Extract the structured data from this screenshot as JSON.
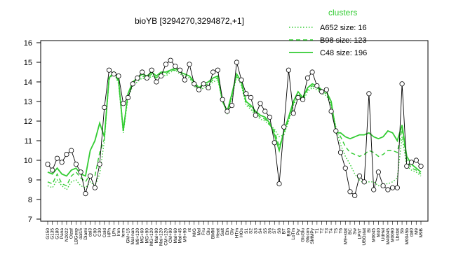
{
  "chart_data": {
    "type": "line",
    "title": "bioYB [3294270,3294872,+1]",
    "ylim": [
      7,
      16
    ],
    "yticks": [
      7,
      8,
      9,
      10,
      11,
      12,
      13,
      14,
      15,
      16
    ],
    "grid": false,
    "legend": {
      "title": "clusters",
      "placement": "top-right",
      "entries": [
        {
          "label": "A652 size: 16",
          "style": "dotted"
        },
        {
          "label": "B98 size: 123",
          "style": "dashed"
        },
        {
          "label": "C48 size: 196",
          "style": "solid"
        }
      ]
    },
    "x_labels": [
      "G150",
      "G135",
      "G180",
      "Pana",
      "N2022",
      "Olzaf",
      "LBGexp",
      "dal15",
      "Diami",
      "dal3",
      "C90",
      "C30",
      "Cold",
      "HPh",
      "LPh",
      "Iron",
      "ferm",
      "GM+15",
      "Mal-nan",
      "M9+120",
      "MG+60",
      "MG+90",
      "MG+120",
      "Mal+90",
      "Mal+120",
      "CM+120",
      "CM+90",
      "Mal+60",
      "Mal+45",
      "M9+90",
      "nt",
      "M/G",
      "Mal",
      "Fru",
      "Glu",
      "BMM",
      "Heat",
      "Salt",
      "Eth",
      "Gly",
      "HTm",
      "HOs",
      "S1",
      "S2",
      "S3",
      "S4",
      "S5",
      "S6",
      "S7",
      "S8",
      "BT",
      "B60",
      "LoTm",
      "Pyr",
      "GlcGlu",
      "Glucon",
      "SMMPy",
      "T1",
      "T2",
      "T3",
      "T4",
      "T5",
      "T6",
      "M9+stat",
      "BC",
      "Sw",
      "LPhT",
      "UBGstat",
      "BI",
      "M0045",
      "M40",
      "UdHel",
      "M40045",
      "M0090",
      "Lbstat",
      "Sb",
      "M0045b",
      "dal0",
      "M9",
      "M9B"
    ],
    "series": [
      {
        "name": "A652 size: 16",
        "style": "dotted",
        "values": [
          8.7,
          8.6,
          9.0,
          8.7,
          8.5,
          8.9,
          9.0,
          8.7,
          8.6,
          8.9,
          8.7,
          9.3,
          11.0,
          14.1,
          14.5,
          13.9,
          11.4,
          13.2,
          13.8,
          14.0,
          14.2,
          14.1,
          14.3,
          14.2,
          14.4,
          14.3,
          14.5,
          14.6,
          14.4,
          14.3,
          14.2,
          13.8,
          13.5,
          13.7,
          13.8,
          14.0,
          14.1,
          13.0,
          12.4,
          13.2,
          14.3,
          13.8,
          12.8,
          12.6,
          12.3,
          12.1,
          12.0,
          11.8,
          11.6,
          11.2,
          11.3,
          12.0,
          12.8,
          13.3,
          13.0,
          13.5,
          13.7,
          13.6,
          13.4,
          13.3,
          12.8,
          11.7,
          10.8,
          10.2,
          9.8,
          9.3,
          9.0,
          8.8,
          8.9,
          8.9,
          8.7,
          8.8,
          8.8,
          8.9,
          9.1,
          11.2,
          9.7,
          9.5,
          9.4,
          9.2
        ]
      },
      {
        "name": "B98 size: 123",
        "style": "dashed",
        "values": [
          8.9,
          8.8,
          9.3,
          8.8,
          8.7,
          9.2,
          9.4,
          9.1,
          8.9,
          9.3,
          9.2,
          10.4,
          11.1,
          14.2,
          14.5,
          14.0,
          11.6,
          13.3,
          13.9,
          14.1,
          14.3,
          14.2,
          14.4,
          14.2,
          14.4,
          14.4,
          14.6,
          14.6,
          14.5,
          14.4,
          14.3,
          13.9,
          13.6,
          13.8,
          13.9,
          14.1,
          14.2,
          13.1,
          12.4,
          13.3,
          14.4,
          13.9,
          12.9,
          12.7,
          12.4,
          12.2,
          12.1,
          11.8,
          11.5,
          10.7,
          11.4,
          12.1,
          12.9,
          13.4,
          13.1,
          13.6,
          13.8,
          13.7,
          13.5,
          13.4,
          12.9,
          11.6,
          11.2,
          10.7,
          10.4,
          10.3,
          10.2,
          10.3,
          10.5,
          10.4,
          10.2,
          10.3,
          10.5,
          10.5,
          10.4,
          11.6,
          10.0,
          9.6,
          9.5,
          9.3
        ]
      },
      {
        "name": "C48 size: 196",
        "style": "solid",
        "values": [
          9.4,
          9.3,
          9.6,
          9.3,
          9.2,
          9.5,
          9.6,
          9.3,
          9.2,
          10.5,
          11.0,
          11.9,
          11.2,
          14.2,
          14.5,
          14.1,
          11.5,
          13.4,
          14.0,
          14.2,
          14.4,
          14.3,
          14.5,
          14.3,
          14.5,
          14.5,
          14.6,
          14.7,
          14.5,
          14.4,
          14.3,
          14.0,
          13.7,
          13.9,
          14.0,
          14.2,
          14.3,
          13.0,
          12.5,
          13.4,
          14.4,
          14.0,
          13.0,
          12.8,
          12.5,
          12.3,
          12.2,
          11.9,
          11.3,
          10.5,
          11.5,
          12.2,
          13.0,
          13.5,
          13.2,
          13.7,
          13.9,
          13.8,
          13.6,
          13.5,
          13.0,
          11.4,
          11.4,
          11.2,
          11.1,
          11.2,
          11.3,
          11.3,
          11.4,
          11.2,
          11.1,
          11.2,
          11.5,
          11.4,
          11.0,
          11.8,
          10.2,
          9.8,
          9.6,
          9.4
        ]
      },
      {
        "name": "",
        "style": "black",
        "values": [
          9.8,
          9.5,
          10.1,
          9.9,
          10.3,
          10.5,
          9.8,
          9.4,
          8.3,
          9.2,
          8.6,
          9.8,
          12.7,
          14.6,
          14.4,
          14.3,
          12.9,
          13.2,
          13.9,
          14.2,
          14.5,
          14.2,
          14.6,
          14.0,
          14.3,
          14.9,
          15.1,
          14.8,
          14.6,
          14.1,
          14.9,
          13.9,
          13.6,
          13.9,
          13.7,
          14.5,
          14.6,
          13.1,
          12.5,
          12.8,
          15.0,
          14.1,
          13.4,
          13.2,
          12.3,
          12.9,
          12.5,
          12.2,
          10.9,
          8.8,
          11.7,
          14.6,
          12.4,
          13.2,
          13.1,
          14.2,
          14.5,
          13.8,
          13.5,
          13.6,
          12.5,
          11.5,
          10.4,
          9.6,
          8.4,
          8.2,
          9.2,
          8.9,
          13.4,
          8.5,
          9.4,
          8.7,
          8.5,
          8.6,
          8.6,
          13.9,
          9.7,
          9.9,
          10.0,
          9.7
        ]
      }
    ]
  }
}
